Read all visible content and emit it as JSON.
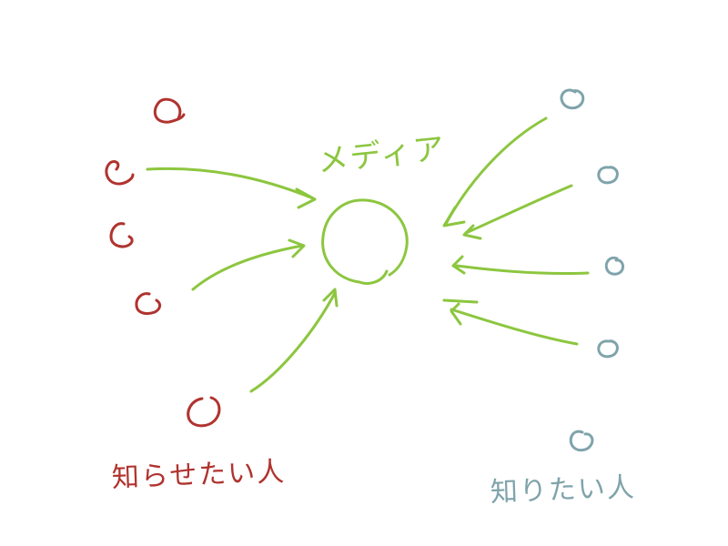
{
  "labels": {
    "media": "メディア",
    "senders": "知らせたい人",
    "receivers": "知りたい人"
  },
  "colors": {
    "media": "#8cc63f",
    "senders": "#b0332f",
    "receivers": "#7fa3ab"
  },
  "groups": {
    "senders": {
      "count": 5
    },
    "receivers": {
      "count": 5
    }
  }
}
